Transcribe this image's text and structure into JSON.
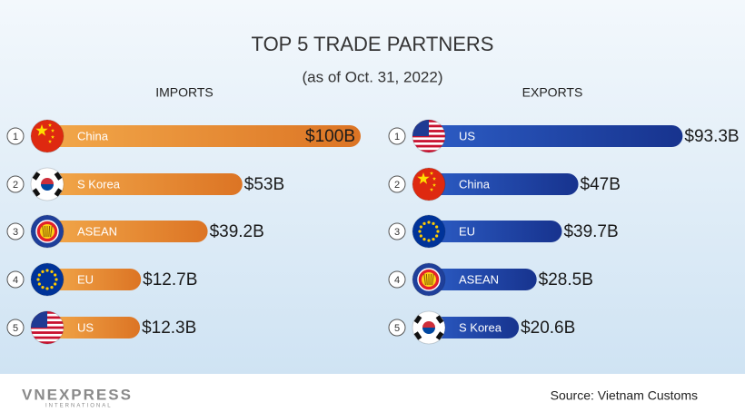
{
  "header": {
    "title": "TOP 5 TRADE PARTNERS",
    "subtitle": "(as of Oct. 31, 2022)"
  },
  "chart_data": [
    {
      "type": "bar",
      "orientation": "horizontal",
      "title": "IMPORTS",
      "color": "#e8862c",
      "ranks": [
        "1",
        "2",
        "3",
        "4",
        "5"
      ],
      "categories": [
        "China",
        "S Korea",
        "ASEAN",
        "EU",
        "US"
      ],
      "values": [
        100,
        53,
        39.2,
        12.7,
        12.3
      ],
      "value_labels": [
        "$100B",
        "$53B",
        "$39.2B",
        "$12.7B",
        "$12.3B"
      ]
    },
    {
      "type": "bar",
      "orientation": "horizontal",
      "title": "EXPORTS",
      "color": "#1f46a8",
      "ranks": [
        "1",
        "2",
        "3",
        "4",
        "5"
      ],
      "categories": [
        "US",
        "China",
        "EU",
        "ASEAN",
        "S Korea"
      ],
      "values": [
        93.3,
        47,
        39.7,
        28.5,
        20.6
      ],
      "value_labels": [
        "$93.3B",
        "$47B",
        "$39.7B",
        "$28.5B",
        "$20.6B"
      ]
    }
  ],
  "footer": {
    "brand": "VNEXPRESS",
    "brand_sub": "INTERNATIONAL",
    "source": "Source: Vietnam Customs"
  }
}
